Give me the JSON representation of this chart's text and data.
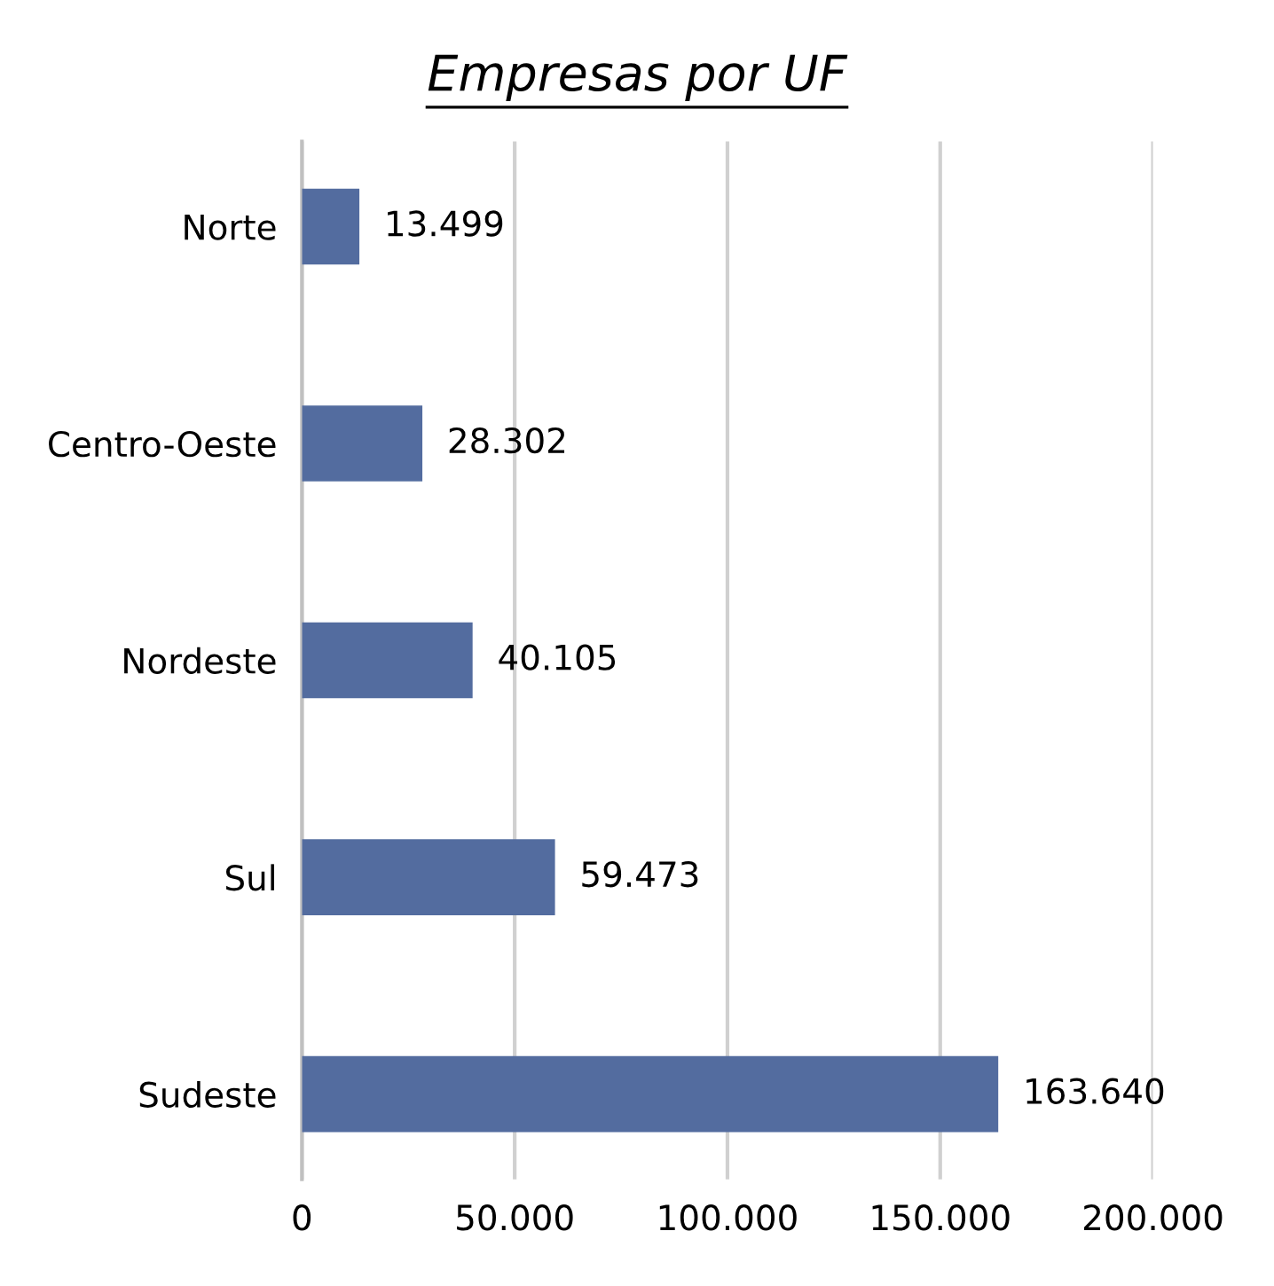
{
  "chart_data": {
    "type": "bar",
    "orientation": "horizontal",
    "title": "Empresas por UF",
    "categories": [
      "Norte",
      "Centro-Oeste",
      "Nordeste",
      "Sul",
      "Sudeste"
    ],
    "values": [
      13499,
      28302,
      40105,
      59473,
      163640
    ],
    "value_labels": [
      "13.499",
      "28.302",
      "40.105",
      "59.473",
      "163.640"
    ],
    "color": "#536c9f",
    "xlim": [
      0,
      200000
    ],
    "xticks": [
      0,
      {
        "value": 50000,
        "label": "50.000"
      },
      {
        "value": 100000,
        "label": "100.000"
      },
      {
        "value": 150000,
        "label": "150.000"
      },
      {
        "value": 200000,
        "label": "200.000"
      }
    ],
    "grid": "x",
    "legend": false
  }
}
